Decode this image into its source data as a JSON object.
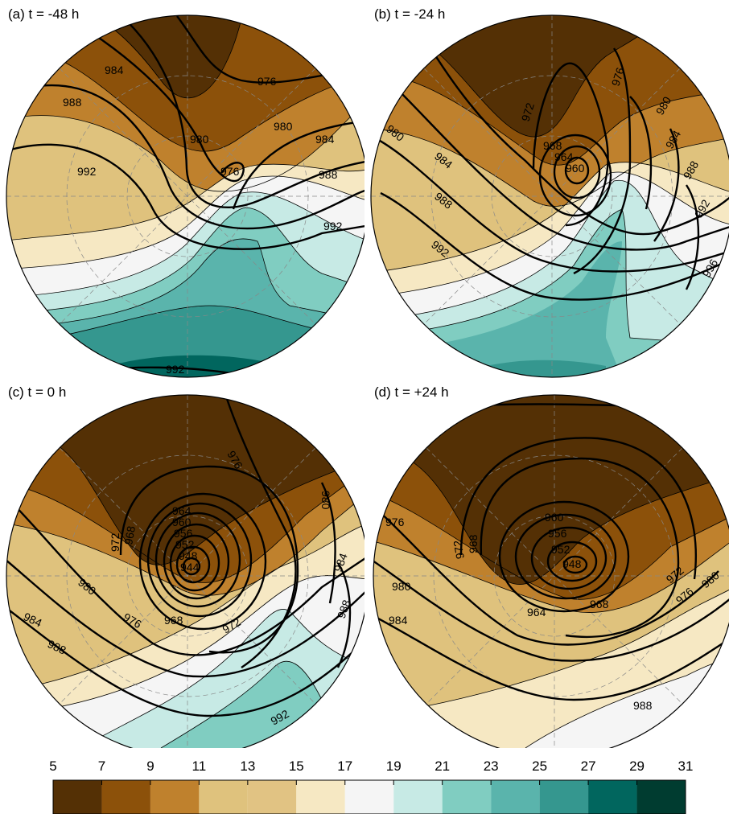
{
  "colors": {
    "levels": [
      "#543005",
      "#8c510a",
      "#bf812d",
      "#dfc27d",
      "#e1c383",
      "#f6e8c3",
      "#f5f5f5",
      "#c7eae5",
      "#80cdc1",
      "#5ab4ac",
      "#35978f",
      "#01665e",
      "#003c30"
    ],
    "isobar": "#000000",
    "graticule": "#888888"
  },
  "panels": [
    {
      "id": "a",
      "title": "(a) t = -48 h",
      "contours": [
        {
          "v": "984"
        },
        {
          "v": "976"
        },
        {
          "v": "988"
        },
        {
          "v": "980"
        },
        {
          "v": "980"
        },
        {
          "v": "984"
        },
        {
          "v": "992"
        },
        {
          "v": "976"
        },
        {
          "v": "988"
        },
        {
          "v": "992"
        },
        {
          "v": "992"
        }
      ]
    },
    {
      "id": "b",
      "title": "(b) t = -24 h",
      "contours": [
        {
          "v": "976"
        },
        {
          "v": "972"
        },
        {
          "v": "976"
        },
        {
          "v": "980"
        },
        {
          "v": "980"
        },
        {
          "v": "968"
        },
        {
          "v": "964"
        },
        {
          "v": "960"
        },
        {
          "v": "984"
        },
        {
          "v": "984"
        },
        {
          "v": "988"
        },
        {
          "v": "988"
        },
        {
          "v": "992"
        },
        {
          "v": "992"
        },
        {
          "v": "996"
        }
      ]
    },
    {
      "id": "c",
      "title": "(c) t = 0 h",
      "contours": [
        {
          "v": "976"
        },
        {
          "v": "980"
        },
        {
          "v": "964"
        },
        {
          "v": "960"
        },
        {
          "v": "956"
        },
        {
          "v": "952"
        },
        {
          "v": "948"
        },
        {
          "v": "944"
        },
        {
          "v": "972"
        },
        {
          "v": "968"
        },
        {
          "v": "980"
        },
        {
          "v": "976"
        },
        {
          "v": "968"
        },
        {
          "v": "972"
        },
        {
          "v": "984"
        },
        {
          "v": "988"
        },
        {
          "v": "984"
        },
        {
          "v": "988"
        },
        {
          "v": "992"
        }
      ]
    },
    {
      "id": "d",
      "title": "(d) t = +24 h",
      "contours": [
        {
          "v": "976"
        },
        {
          "v": "960"
        },
        {
          "v": "956"
        },
        {
          "v": "952"
        },
        {
          "v": "948"
        },
        {
          "v": "968"
        },
        {
          "v": "972"
        },
        {
          "v": "980"
        },
        {
          "v": "964"
        },
        {
          "v": "968"
        },
        {
          "v": "972"
        },
        {
          "v": "976"
        },
        {
          "v": "980"
        },
        {
          "v": "984"
        },
        {
          "v": "988"
        }
      ]
    }
  ],
  "chart_data": {
    "type": "heatmap",
    "title": "",
    "colorbar": {
      "ticks": [
        "5",
        "7",
        "9",
        "11",
        "13",
        "15",
        "17",
        "19",
        "21",
        "23",
        "25",
        "27",
        "29",
        "31"
      ],
      "bins": [
        [
          5,
          7
        ],
        [
          7,
          9
        ],
        [
          9,
          11
        ],
        [
          11,
          13
        ],
        [
          13,
          15
        ],
        [
          15,
          17
        ],
        [
          17,
          19
        ],
        [
          19,
          21
        ],
        [
          21,
          23
        ],
        [
          23,
          25
        ],
        [
          25,
          27
        ],
        [
          27,
          29
        ],
        [
          29,
          31
        ]
      ]
    },
    "isobar_interval": 4,
    "panels": [
      {
        "id": "a",
        "title": "(a) t = -48 h",
        "min_pressure": 976,
        "isobars": [
          976,
          980,
          984,
          988,
          992
        ]
      },
      {
        "id": "b",
        "title": "(b) t = -24 h",
        "min_pressure": 960,
        "isobars": [
          960,
          964,
          968,
          972,
          976,
          980,
          984,
          988,
          992,
          996
        ]
      },
      {
        "id": "c",
        "title": "(c) t = 0 h",
        "min_pressure": 944,
        "isobars": [
          944,
          948,
          952,
          956,
          960,
          964,
          968,
          972,
          976,
          980,
          984,
          988,
          992
        ]
      },
      {
        "id": "d",
        "title": "(d) t = +24 h",
        "min_pressure": 948,
        "isobars": [
          948,
          952,
          956,
          960,
          964,
          968,
          972,
          976,
          980,
          984,
          988
        ]
      }
    ]
  }
}
